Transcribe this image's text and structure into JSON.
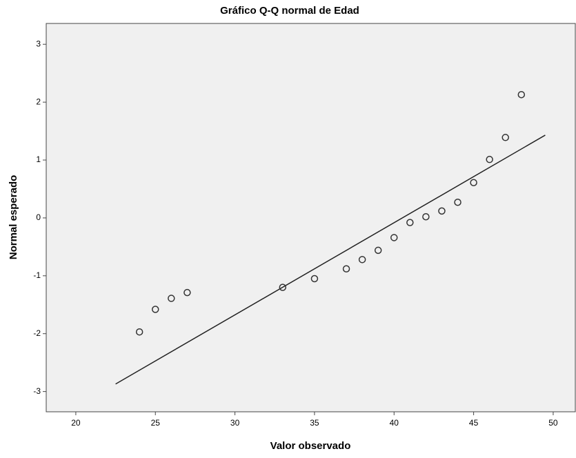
{
  "chart_data": {
    "type": "scatter",
    "title": "Gráfico Q-Q normal de Edad",
    "xlabel": "Valor observado",
    "ylabel": "Normal esperado",
    "x": [
      24,
      25,
      26,
      27,
      33,
      35,
      37,
      38,
      39,
      40,
      41,
      42,
      43,
      44,
      45,
      46,
      47,
      48
    ],
    "series": [
      {
        "color": "#333333",
        "values": [
          -1.97,
          -1.58,
          -1.39,
          -1.29,
          -1.2,
          -1.05,
          -0.88,
          -0.72,
          -0.56,
          -0.34,
          -0.08,
          0.02,
          0.12,
          0.27,
          0.61,
          1.01,
          1.39,
          2.13
        ]
      }
    ],
    "reference_line": {
      "color": "#222222",
      "x": [
        22.5,
        49.5
      ],
      "y": [
        -2.87,
        1.43
      ]
    },
    "xlim": [
      18.14,
      51.39
    ],
    "xticks": [
      20,
      25,
      30,
      35,
      40,
      45,
      50
    ],
    "ylim": [
      -3.35,
      3.36
    ],
    "yticks": [
      -3,
      -2,
      -1,
      0,
      1,
      2,
      3
    ],
    "grid": false
  }
}
